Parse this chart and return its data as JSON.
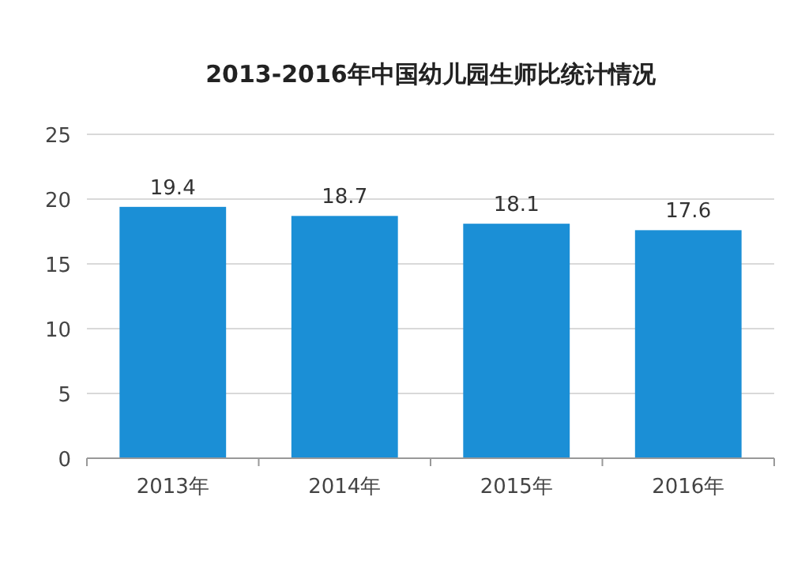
{
  "chart_data": {
    "type": "bar",
    "title": "2013-2016年中国幼儿园生师比统计情况",
    "categories": [
      "2013年",
      "2014年",
      "2015年",
      "2016年"
    ],
    "values": [
      19.4,
      18.7,
      18.1,
      17.6
    ],
    "color": "#1b8fd6",
    "ylim": [
      0,
      25
    ],
    "yticks": [
      0,
      5,
      10,
      15,
      20,
      25
    ],
    "grid": "y",
    "data_labels": true
  }
}
